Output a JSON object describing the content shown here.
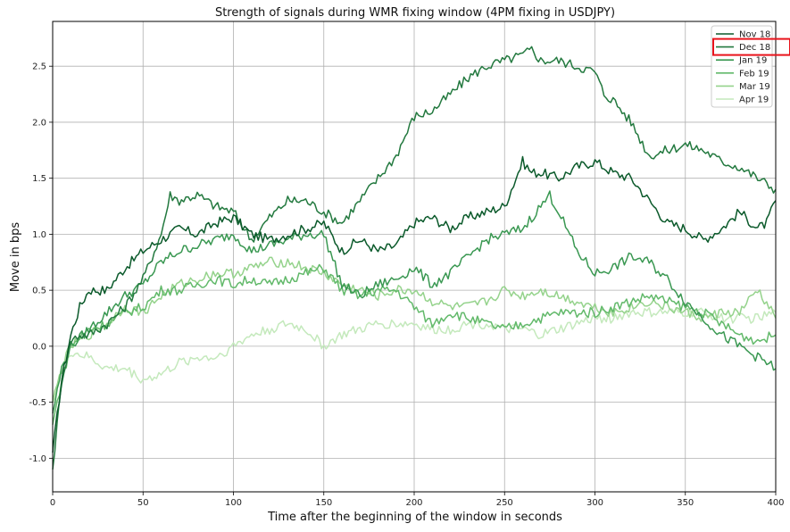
{
  "chart_data": {
    "type": "line",
    "title": "Strength of signals during WMR fixing window (4PM fixing in USDJPY)",
    "xlabel": "Time after the beginning of the window in seconds",
    "ylabel": "Move in bps",
    "xlim": [
      0,
      400
    ],
    "ylim": [
      -1.3,
      2.9
    ],
    "xticks": [
      0,
      50,
      100,
      150,
      200,
      250,
      300,
      350,
      400
    ],
    "xtick_labels": [
      "0",
      "50",
      "100",
      "150",
      "200",
      "250",
      "300",
      "350",
      "400"
    ],
    "yticks": [
      -1.0,
      -0.5,
      0.0,
      0.5,
      1.0,
      1.5,
      2.0,
      2.5
    ],
    "ytick_labels": [
      "-1.0",
      "-0.5",
      "0.0",
      "0.5",
      "1.0",
      "1.5",
      "2.0",
      "2.5"
    ],
    "grid": true,
    "legend_position": "top-right",
    "highlight_box": {
      "target": "legend entry Dec 18",
      "color": "#e8131b"
    },
    "series": [
      {
        "name": "Nov 18",
        "color": "#0b5a2b",
        "x": [
          0,
          5,
          10,
          15,
          20,
          30,
          40,
          50,
          60,
          70,
          80,
          90,
          100,
          110,
          120,
          130,
          140,
          150,
          160,
          170,
          180,
          190,
          200,
          210,
          220,
          230,
          240,
          250,
          255,
          260,
          265,
          270,
          280,
          290,
          300,
          310,
          320,
          330,
          340,
          350,
          360,
          370,
          380,
          390,
          395,
          400
        ],
        "y": [
          -0.95,
          -0.3,
          0.1,
          0.35,
          0.5,
          0.5,
          0.7,
          0.85,
          0.95,
          1.05,
          1.0,
          1.1,
          1.15,
          1.0,
          0.95,
          1.0,
          1.05,
          1.1,
          0.85,
          0.95,
          0.85,
          0.9,
          1.1,
          1.15,
          1.05,
          1.15,
          1.2,
          1.25,
          1.45,
          1.65,
          1.55,
          1.55,
          1.5,
          1.6,
          1.65,
          1.55,
          1.5,
          1.3,
          1.1,
          1.05,
          0.95,
          1.05,
          1.2,
          1.05,
          1.1,
          1.3
        ]
      },
      {
        "name": "Dec 18",
        "color": "#23793f",
        "x": [
          0,
          5,
          10,
          15,
          20,
          30,
          40,
          50,
          60,
          65,
          70,
          80,
          90,
          100,
          110,
          120,
          130,
          140,
          150,
          160,
          170,
          180,
          190,
          200,
          210,
          220,
          230,
          240,
          250,
          260,
          265,
          270,
          280,
          290,
          300,
          305,
          310,
          320,
          330,
          340,
          350,
          360,
          370,
          380,
          390,
          400
        ],
        "y": [
          -1.1,
          -0.3,
          0.05,
          0.1,
          0.1,
          0.2,
          0.35,
          0.6,
          1.0,
          1.35,
          1.3,
          1.35,
          1.25,
          1.2,
          0.95,
          1.15,
          1.3,
          1.3,
          1.2,
          1.1,
          1.3,
          1.5,
          1.7,
          2.05,
          2.1,
          2.25,
          2.4,
          2.5,
          2.55,
          2.6,
          2.65,
          2.55,
          2.55,
          2.5,
          2.45,
          2.25,
          2.2,
          2.0,
          1.7,
          1.75,
          1.8,
          1.75,
          1.65,
          1.6,
          1.5,
          1.4
        ]
      },
      {
        "name": "Jan 19",
        "color": "#3a9852",
        "x": [
          0,
          5,
          10,
          20,
          30,
          40,
          50,
          60,
          70,
          80,
          90,
          100,
          110,
          120,
          130,
          140,
          150,
          160,
          170,
          180,
          190,
          200,
          210,
          220,
          230,
          240,
          250,
          260,
          270,
          275,
          280,
          290,
          300,
          310,
          320,
          330,
          340,
          350,
          360,
          370,
          380,
          390,
          400
        ],
        "y": [
          -0.6,
          -0.2,
          0.0,
          0.15,
          0.3,
          0.45,
          0.55,
          0.75,
          0.85,
          0.9,
          0.95,
          1.0,
          0.85,
          0.9,
          0.95,
          1.0,
          1.0,
          0.55,
          0.45,
          0.55,
          0.6,
          0.7,
          0.55,
          0.65,
          0.8,
          0.95,
          1.0,
          1.05,
          1.25,
          1.35,
          1.2,
          0.85,
          0.65,
          0.7,
          0.8,
          0.75,
          0.6,
          0.4,
          0.25,
          0.1,
          0.0,
          -0.1,
          -0.2
        ]
      },
      {
        "name": "Feb 19",
        "color": "#62b96a",
        "x": [
          0,
          5,
          10,
          20,
          30,
          40,
          50,
          60,
          70,
          80,
          90,
          100,
          110,
          120,
          130,
          140,
          150,
          160,
          170,
          180,
          190,
          200,
          210,
          220,
          230,
          240,
          250,
          260,
          270,
          280,
          290,
          300,
          310,
          320,
          330,
          340,
          350,
          360,
          370,
          380,
          390,
          400
        ],
        "y": [
          -0.7,
          -0.3,
          0.0,
          0.15,
          0.2,
          0.3,
          0.35,
          0.5,
          0.5,
          0.55,
          0.6,
          0.55,
          0.6,
          0.55,
          0.6,
          0.65,
          0.7,
          0.5,
          0.45,
          0.5,
          0.5,
          0.35,
          0.2,
          0.3,
          0.25,
          0.2,
          0.15,
          0.2,
          0.25,
          0.3,
          0.3,
          0.3,
          0.35,
          0.4,
          0.45,
          0.4,
          0.35,
          0.3,
          0.2,
          0.1,
          0.05,
          0.1
        ]
      },
      {
        "name": "Mar 19",
        "color": "#95d38c",
        "x": [
          0,
          5,
          10,
          20,
          30,
          40,
          50,
          60,
          70,
          80,
          90,
          100,
          110,
          120,
          130,
          140,
          150,
          160,
          170,
          180,
          190,
          200,
          210,
          220,
          230,
          240,
          250,
          260,
          270,
          280,
          290,
          300,
          310,
          320,
          330,
          340,
          350,
          360,
          370,
          380,
          390,
          400
        ],
        "y": [
          -0.5,
          -0.2,
          0.0,
          0.1,
          0.2,
          0.35,
          0.3,
          0.45,
          0.55,
          0.6,
          0.65,
          0.65,
          0.7,
          0.75,
          0.75,
          0.7,
          0.65,
          0.55,
          0.5,
          0.45,
          0.5,
          0.5,
          0.4,
          0.35,
          0.35,
          0.4,
          0.5,
          0.45,
          0.5,
          0.45,
          0.4,
          0.35,
          0.3,
          0.35,
          0.4,
          0.35,
          0.3,
          0.25,
          0.3,
          0.3,
          0.5,
          0.25
        ]
      },
      {
        "name": "Apr 19",
        "color": "#c4e9bc",
        "x": [
          0,
          5,
          10,
          20,
          30,
          40,
          50,
          60,
          70,
          80,
          90,
          100,
          110,
          120,
          130,
          140,
          150,
          160,
          170,
          180,
          190,
          200,
          210,
          220,
          230,
          240,
          250,
          260,
          270,
          280,
          290,
          300,
          310,
          320,
          330,
          340,
          350,
          360,
          370,
          380,
          390,
          400
        ],
        "y": [
          -0.5,
          -0.2,
          -0.05,
          -0.1,
          -0.2,
          -0.2,
          -0.3,
          -0.25,
          -0.15,
          -0.1,
          -0.1,
          0.0,
          0.1,
          0.15,
          0.2,
          0.15,
          0.0,
          0.1,
          0.15,
          0.2,
          0.2,
          0.2,
          0.15,
          0.15,
          0.2,
          0.2,
          0.15,
          0.15,
          0.1,
          0.15,
          0.2,
          0.25,
          0.25,
          0.3,
          0.3,
          0.3,
          0.3,
          0.3,
          0.25,
          0.25,
          0.25,
          0.3
        ]
      }
    ]
  }
}
